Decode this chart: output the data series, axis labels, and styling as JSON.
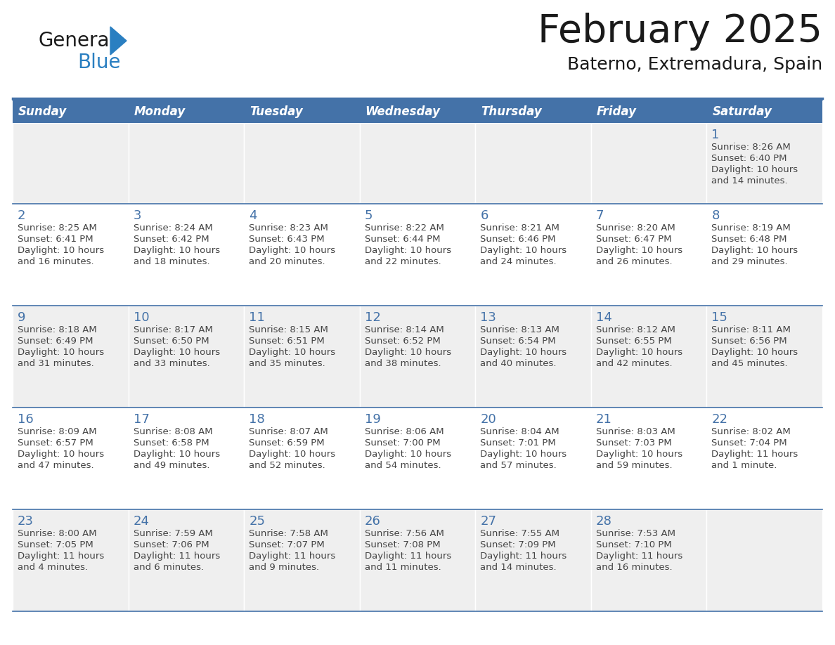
{
  "title": "February 2025",
  "subtitle": "Baterno, Extremadura, Spain",
  "header_bg": "#4472a8",
  "header_text": "#ffffff",
  "weekdays": [
    "Sunday",
    "Monday",
    "Tuesday",
    "Wednesday",
    "Thursday",
    "Friday",
    "Saturday"
  ],
  "row_colors": [
    "#efefef",
    "#ffffff"
  ],
  "day_number_color": "#4472a8",
  "text_color": "#444444",
  "border_color": "#4472a8",
  "line_color": "#4472a8",
  "calendar": [
    [
      null,
      null,
      null,
      null,
      null,
      null,
      {
        "day": 1,
        "sunrise": "8:26 AM",
        "sunset": "6:40 PM",
        "daylight": "10 hours",
        "daylight2": "and 14 minutes."
      }
    ],
    [
      {
        "day": 2,
        "sunrise": "8:25 AM",
        "sunset": "6:41 PM",
        "daylight": "10 hours",
        "daylight2": "and 16 minutes."
      },
      {
        "day": 3,
        "sunrise": "8:24 AM",
        "sunset": "6:42 PM",
        "daylight": "10 hours",
        "daylight2": "and 18 minutes."
      },
      {
        "day": 4,
        "sunrise": "8:23 AM",
        "sunset": "6:43 PM",
        "daylight": "10 hours",
        "daylight2": "and 20 minutes."
      },
      {
        "day": 5,
        "sunrise": "8:22 AM",
        "sunset": "6:44 PM",
        "daylight": "10 hours",
        "daylight2": "and 22 minutes."
      },
      {
        "day": 6,
        "sunrise": "8:21 AM",
        "sunset": "6:46 PM",
        "daylight": "10 hours",
        "daylight2": "and 24 minutes."
      },
      {
        "day": 7,
        "sunrise": "8:20 AM",
        "sunset": "6:47 PM",
        "daylight": "10 hours",
        "daylight2": "and 26 minutes."
      },
      {
        "day": 8,
        "sunrise": "8:19 AM",
        "sunset": "6:48 PM",
        "daylight": "10 hours",
        "daylight2": "and 29 minutes."
      }
    ],
    [
      {
        "day": 9,
        "sunrise": "8:18 AM",
        "sunset": "6:49 PM",
        "daylight": "10 hours",
        "daylight2": "and 31 minutes."
      },
      {
        "day": 10,
        "sunrise": "8:17 AM",
        "sunset": "6:50 PM",
        "daylight": "10 hours",
        "daylight2": "and 33 minutes."
      },
      {
        "day": 11,
        "sunrise": "8:15 AM",
        "sunset": "6:51 PM",
        "daylight": "10 hours",
        "daylight2": "and 35 minutes."
      },
      {
        "day": 12,
        "sunrise": "8:14 AM",
        "sunset": "6:52 PM",
        "daylight": "10 hours",
        "daylight2": "and 38 minutes."
      },
      {
        "day": 13,
        "sunrise": "8:13 AM",
        "sunset": "6:54 PM",
        "daylight": "10 hours",
        "daylight2": "and 40 minutes."
      },
      {
        "day": 14,
        "sunrise": "8:12 AM",
        "sunset": "6:55 PM",
        "daylight": "10 hours",
        "daylight2": "and 42 minutes."
      },
      {
        "day": 15,
        "sunrise": "8:11 AM",
        "sunset": "6:56 PM",
        "daylight": "10 hours",
        "daylight2": "and 45 minutes."
      }
    ],
    [
      {
        "day": 16,
        "sunrise": "8:09 AM",
        "sunset": "6:57 PM",
        "daylight": "10 hours",
        "daylight2": "and 47 minutes."
      },
      {
        "day": 17,
        "sunrise": "8:08 AM",
        "sunset": "6:58 PM",
        "daylight": "10 hours",
        "daylight2": "and 49 minutes."
      },
      {
        "day": 18,
        "sunrise": "8:07 AM",
        "sunset": "6:59 PM",
        "daylight": "10 hours",
        "daylight2": "and 52 minutes."
      },
      {
        "day": 19,
        "sunrise": "8:06 AM",
        "sunset": "7:00 PM",
        "daylight": "10 hours",
        "daylight2": "and 54 minutes."
      },
      {
        "day": 20,
        "sunrise": "8:04 AM",
        "sunset": "7:01 PM",
        "daylight": "10 hours",
        "daylight2": "and 57 minutes."
      },
      {
        "day": 21,
        "sunrise": "8:03 AM",
        "sunset": "7:03 PM",
        "daylight": "10 hours",
        "daylight2": "and 59 minutes."
      },
      {
        "day": 22,
        "sunrise": "8:02 AM",
        "sunset": "7:04 PM",
        "daylight": "11 hours",
        "daylight2": "and 1 minute."
      }
    ],
    [
      {
        "day": 23,
        "sunrise": "8:00 AM",
        "sunset": "7:05 PM",
        "daylight": "11 hours",
        "daylight2": "and 4 minutes."
      },
      {
        "day": 24,
        "sunrise": "7:59 AM",
        "sunset": "7:06 PM",
        "daylight": "11 hours",
        "daylight2": "and 6 minutes."
      },
      {
        "day": 25,
        "sunrise": "7:58 AM",
        "sunset": "7:07 PM",
        "daylight": "11 hours",
        "daylight2": "and 9 minutes."
      },
      {
        "day": 26,
        "sunrise": "7:56 AM",
        "sunset": "7:08 PM",
        "daylight": "11 hours",
        "daylight2": "and 11 minutes."
      },
      {
        "day": 27,
        "sunrise": "7:55 AM",
        "sunset": "7:09 PM",
        "daylight": "11 hours",
        "daylight2": "and 14 minutes."
      },
      {
        "day": 28,
        "sunrise": "7:53 AM",
        "sunset": "7:10 PM",
        "daylight": "11 hours",
        "daylight2": "and 16 minutes."
      },
      null
    ]
  ],
  "logo_color1": "#1a1a1a",
  "logo_color2": "#2a7fc1",
  "logo_triangle_color": "#2a7fc1",
  "fig_width": 11.88,
  "fig_height": 9.18,
  "dpi": 100
}
